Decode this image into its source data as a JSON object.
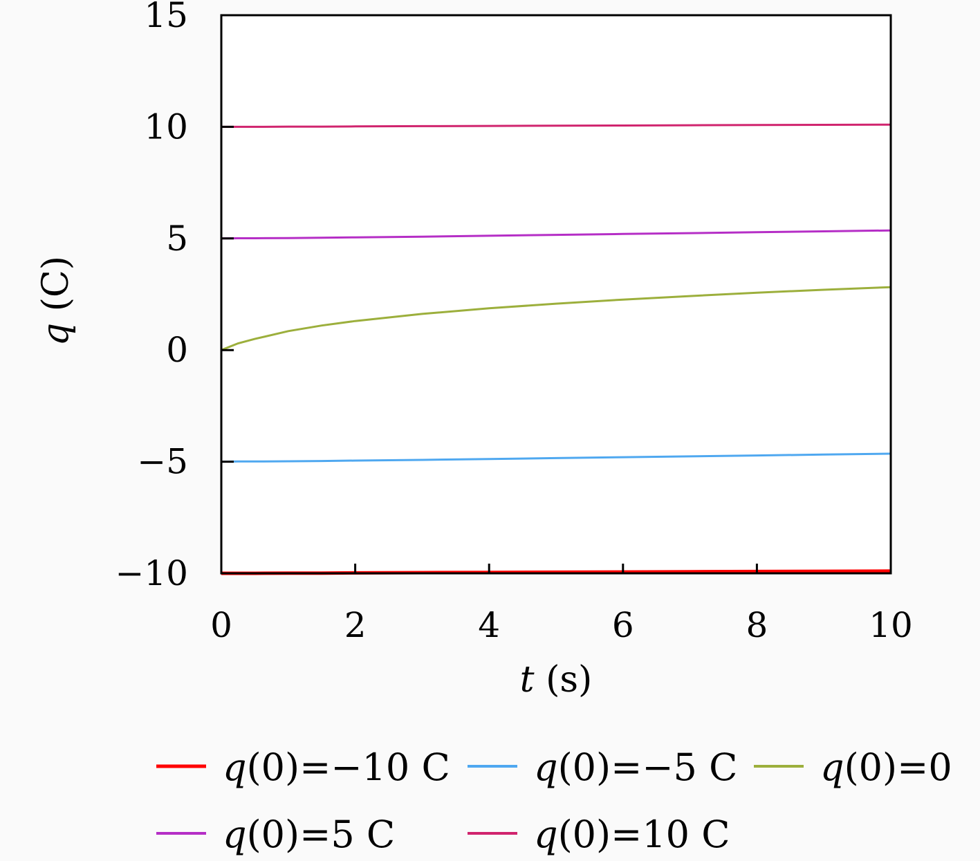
{
  "chart_data": {
    "type": "line",
    "title": "",
    "xlabel": {
      "var": "t",
      "unit": "(s)"
    },
    "ylabel": {
      "var": "q",
      "unit": "(C)"
    },
    "xlim": [
      0,
      10
    ],
    "ylim": [
      -10,
      15
    ],
    "xticks": [
      "0",
      "2",
      "4",
      "6",
      "8",
      "10"
    ],
    "yticks": [
      "15",
      "10",
      "5",
      "0",
      "−5",
      "−10"
    ],
    "grid": false,
    "legend_position": "bottom",
    "x": [
      0,
      0.25,
      0.5,
      1,
      1.5,
      2,
      3,
      4,
      5,
      6,
      7,
      8,
      9,
      10
    ],
    "series": [
      {
        "name": "q(0)=−10 C",
        "legend": {
          "var": "q",
          "rest": "(0)=−10 C"
        },
        "color": "#ff0000",
        "values": [
          -10,
          -10,
          -10,
          -9.99,
          -9.99,
          -9.98,
          -9.97,
          -9.96,
          -9.95,
          -9.94,
          -9.93,
          -9.92,
          -9.91,
          -9.9
        ]
      },
      {
        "name": "q(0)=−5 C",
        "legend": {
          "var": "q",
          "rest": "(0)=−5 C"
        },
        "color": "#4fa8f0",
        "values": [
          -5,
          -4.99,
          -4.99,
          -4.98,
          -4.97,
          -4.95,
          -4.92,
          -4.88,
          -4.84,
          -4.8,
          -4.76,
          -4.72,
          -4.68,
          -4.64
        ]
      },
      {
        "name": "q(0)=0",
        "legend": {
          "var": "q",
          "rest": "(0)=0"
        },
        "color": "#9caf3c",
        "values": [
          0,
          0.3,
          0.5,
          0.85,
          1.1,
          1.3,
          1.62,
          1.87,
          2.08,
          2.26,
          2.42,
          2.57,
          2.7,
          2.82
        ]
      },
      {
        "name": "q(0)=5 C",
        "legend": {
          "var": "q",
          "rest": "(0)=5 C"
        },
        "color": "#b52ec6",
        "values": [
          5,
          5.01,
          5.01,
          5.02,
          5.03,
          5.05,
          5.08,
          5.12,
          5.16,
          5.2,
          5.24,
          5.28,
          5.32,
          5.36
        ]
      },
      {
        "name": "q(0)=10 C",
        "legend": {
          "var": "q",
          "rest": "(0)=10 C"
        },
        "color": "#d0246e",
        "values": [
          10,
          10,
          10,
          10.01,
          10.01,
          10.02,
          10.03,
          10.04,
          10.05,
          10.06,
          10.07,
          10.08,
          10.09,
          10.1
        ]
      }
    ]
  }
}
